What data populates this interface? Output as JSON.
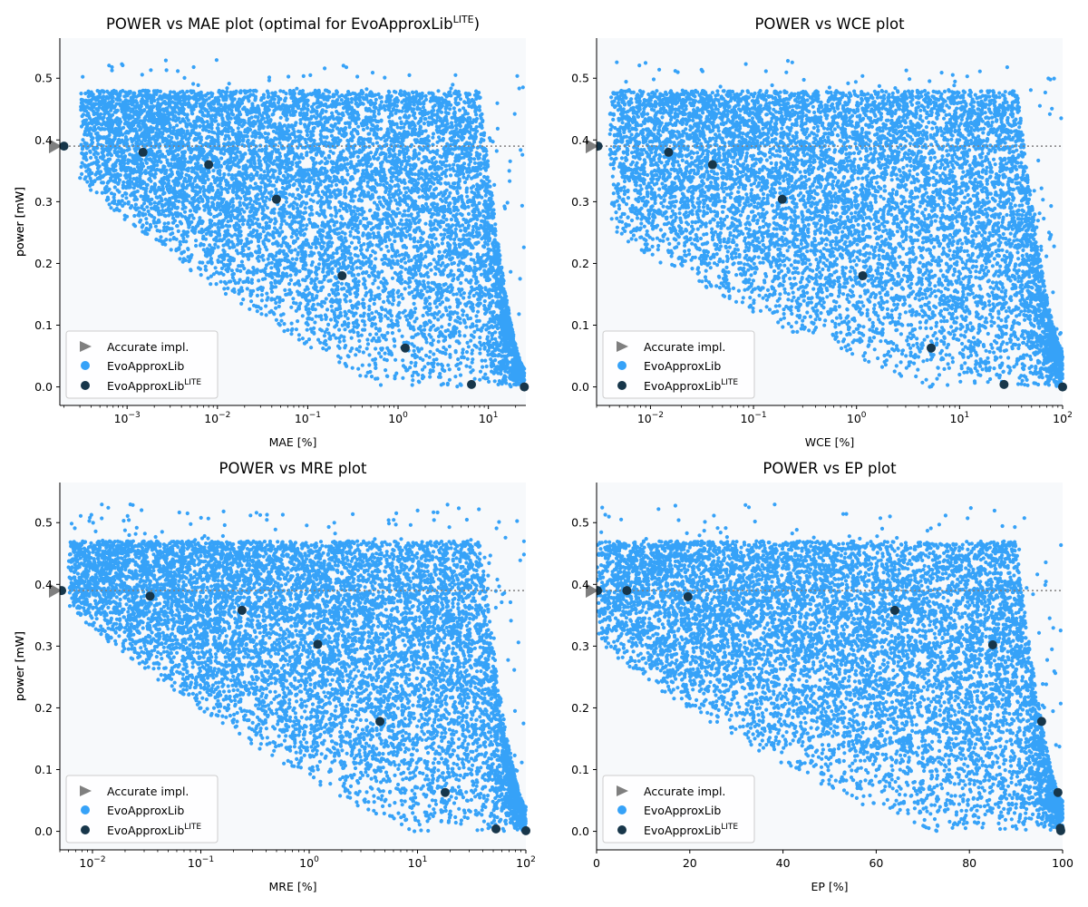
{
  "colors": {
    "plot_bg": "#f7f9fb",
    "cloud": "#36a2f8",
    "lite": "#17364a",
    "accurate": "#7f7f7f",
    "ref_line": "#7f7f7f"
  },
  "legend": {
    "accurate": "Accurate impl.",
    "evo": "EvoApproxLib",
    "lite_base": "EvoApproxLib",
    "lite_sup": "LITE",
    "location": "lower-left"
  },
  "chart_data": [
    {
      "type": "scatter",
      "title": "POWER vs MAE plot (optimal for EvoApproxLib",
      "title_sup": "LITE",
      "title_end": ")",
      "xlabel": "MAE [%]",
      "ylabel": "power [mW]",
      "xscale": "log",
      "xlim": [
        0.00018,
        26
      ],
      "ylim": [
        -0.03,
        0.565
      ],
      "xticks": [
        {
          "value": 0.001,
          "base": "10",
          "exp": "−3"
        },
        {
          "value": 0.01,
          "base": "10",
          "exp": "−2"
        },
        {
          "value": 0.1,
          "base": "10",
          "exp": "−1"
        },
        {
          "value": 1,
          "base": "10",
          "exp": "0"
        },
        {
          "value": 10,
          "base": "10",
          "exp": "1"
        }
      ],
      "yticks": [
        {
          "value": 0.0,
          "label": "0.0"
        },
        {
          "value": 0.1,
          "label": "0.1"
        },
        {
          "value": 0.2,
          "label": "0.2"
        },
        {
          "value": 0.3,
          "label": "0.3"
        },
        {
          "value": 0.4,
          "label": "0.4"
        },
        {
          "value": 0.5,
          "label": "0.5"
        }
      ],
      "accurate": {
        "x": 0.00018,
        "y": 0.39
      },
      "lite_points": [
        [
          0.0002,
          0.39
        ],
        [
          0.0015,
          0.38
        ],
        [
          0.008,
          0.36
        ],
        [
          0.045,
          0.304
        ],
        [
          0.24,
          0.18
        ],
        [
          1.2,
          0.063
        ],
        [
          6.5,
          0.004
        ],
        [
          25,
          0.0
        ]
      ],
      "cloud": {
        "x0": 0.0003,
        "x1": 25,
        "top": 0.48,
        "upper": 0.33,
        "lower": 0.08,
        "trail": 0.03,
        "seed": 11,
        "count": 9000
      }
    },
    {
      "type": "scatter",
      "title": "POWER vs WCE plot",
      "xlabel": "WCE [%]",
      "ylabel": "power [mW]",
      "xscale": "log",
      "xlim": [
        0.003,
        100
      ],
      "ylim": [
        -0.03,
        0.565
      ],
      "xticks": [
        {
          "value": 0.01,
          "base": "10",
          "exp": "−2"
        },
        {
          "value": 0.1,
          "base": "10",
          "exp": "−1"
        },
        {
          "value": 1,
          "base": "10",
          "exp": "0"
        },
        {
          "value": 10,
          "base": "10",
          "exp": "1"
        },
        {
          "value": 100,
          "base": "10",
          "exp": "2"
        }
      ],
      "yticks": [
        {
          "value": 0.0,
          "label": "0.0"
        },
        {
          "value": 0.1,
          "label": "0.1"
        },
        {
          "value": 0.2,
          "label": "0.2"
        },
        {
          "value": 0.3,
          "label": "0.3"
        },
        {
          "value": 0.4,
          "label": "0.4"
        },
        {
          "value": 0.5,
          "label": "0.5"
        }
      ],
      "accurate": {
        "x": 0.003,
        "y": 0.39
      },
      "lite_points": [
        [
          0.0031,
          0.39
        ],
        [
          0.015,
          0.38
        ],
        [
          0.04,
          0.36
        ],
        [
          0.19,
          0.304
        ],
        [
          1.15,
          0.18
        ],
        [
          5.3,
          0.063
        ],
        [
          27,
          0.004
        ],
        [
          100,
          0.0
        ]
      ],
      "cloud": {
        "x0": 0.004,
        "x1": 100,
        "top": 0.48,
        "upper": 0.25,
        "lower": 0.05,
        "trail": 0.06,
        "seed": 23,
        "count": 9000
      }
    },
    {
      "type": "scatter",
      "title": "POWER vs MRE plot",
      "xlabel": "MRE [%]",
      "ylabel": "power [mW]",
      "xscale": "log",
      "xlim": [
        0.005,
        100
      ],
      "ylim": [
        -0.03,
        0.565
      ],
      "xticks": [
        {
          "value": 0.01,
          "base": "10",
          "exp": "−2"
        },
        {
          "value": 0.1,
          "base": "10",
          "exp": "−1"
        },
        {
          "value": 1,
          "base": "10",
          "exp": "0"
        },
        {
          "value": 10,
          "base": "10",
          "exp": "1"
        },
        {
          "value": 100,
          "base": "10",
          "exp": "2"
        }
      ],
      "yticks": [
        {
          "value": 0.0,
          "label": "0.0"
        },
        {
          "value": 0.1,
          "label": "0.1"
        },
        {
          "value": 0.2,
          "label": "0.2"
        },
        {
          "value": 0.3,
          "label": "0.3"
        },
        {
          "value": 0.4,
          "label": "0.4"
        },
        {
          "value": 0.5,
          "label": "0.5"
        }
      ],
      "accurate": {
        "x": 0.005,
        "y": 0.39
      },
      "lite_points": [
        [
          0.0052,
          0.39
        ],
        [
          0.034,
          0.381
        ],
        [
          0.24,
          0.358
        ],
        [
          1.2,
          0.303
        ],
        [
          4.5,
          0.178
        ],
        [
          18,
          0.063
        ],
        [
          53,
          0.004
        ],
        [
          100,
          0.001
        ]
      ],
      "cloud": {
        "x0": 0.006,
        "x1": 100,
        "top": 0.47,
        "upper": 0.36,
        "lower": 0.05,
        "trail": 0.04,
        "seed": 37,
        "count": 9000
      }
    },
    {
      "type": "scatter",
      "title": "POWER vs EP plot",
      "xlabel": "EP [%]",
      "ylabel": "power [mW]",
      "xscale": "linear",
      "xlim": [
        0,
        100
      ],
      "ylim": [
        -0.03,
        0.565
      ],
      "xticks": [
        {
          "value": 0,
          "label": "0"
        },
        {
          "value": 20,
          "label": "20"
        },
        {
          "value": 40,
          "label": "40"
        },
        {
          "value": 60,
          "label": "60"
        },
        {
          "value": 80,
          "label": "80"
        },
        {
          "value": 100,
          "label": "100"
        }
      ],
      "yticks": [
        {
          "value": 0.0,
          "label": "0.0"
        },
        {
          "value": 0.1,
          "label": "0.1"
        },
        {
          "value": 0.2,
          "label": "0.2"
        },
        {
          "value": 0.3,
          "label": "0.3"
        },
        {
          "value": 0.4,
          "label": "0.4"
        },
        {
          "value": 0.5,
          "label": "0.5"
        }
      ],
      "accurate": {
        "x": 0,
        "y": 0.39
      },
      "lite_points": [
        [
          0.2,
          0.39
        ],
        [
          6.5,
          0.39
        ],
        [
          19.6,
          0.38
        ],
        [
          64,
          0.358
        ],
        [
          85,
          0.302
        ],
        [
          95.5,
          0.178
        ],
        [
          99,
          0.063
        ],
        [
          99.5,
          0.005
        ],
        [
          99.6,
          0.001
        ]
      ],
      "cloud": {
        "x0": 0,
        "x1": 100,
        "top": 0.47,
        "upper": 0.3,
        "lower": 0.06,
        "trail": 0.05,
        "seed": 51,
        "count": 9000
      }
    }
  ]
}
